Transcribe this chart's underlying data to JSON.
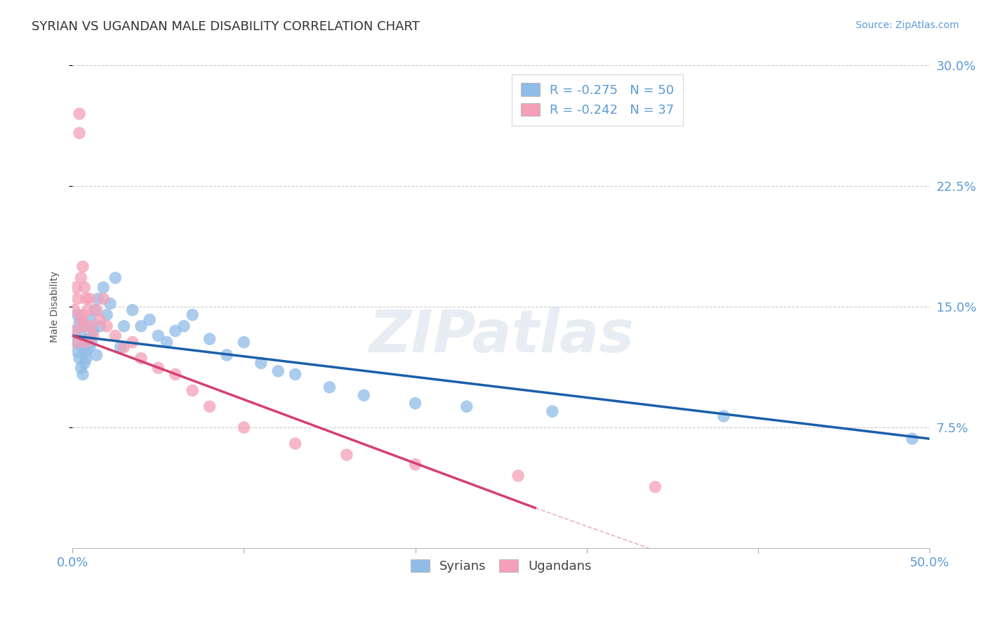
{
  "title": "SYRIAN VS UGANDAN MALE DISABILITY CORRELATION CHART",
  "source": "Source: ZipAtlas.com",
  "ylabel": "Male Disability",
  "xlim": [
    0.0,
    0.5
  ],
  "ylim": [
    0.0,
    0.3
  ],
  "syrian_color": "#90bce8",
  "ugandan_color": "#f4a0b8",
  "syrian_line_color": "#1a5faa",
  "ugandan_line_color": "#d44070",
  "syrian_R": -0.275,
  "syrian_N": 50,
  "ugandan_R": -0.242,
  "ugandan_N": 37,
  "tick_color": "#5b9bd5",
  "label_color": "#555555",
  "grid_color": "#cccccc",
  "syrians_x": [
    0.001,
    0.002,
    0.003,
    0.003,
    0.004,
    0.004,
    0.005,
    0.005,
    0.006,
    0.006,
    0.007,
    0.007,
    0.008,
    0.008,
    0.009,
    0.01,
    0.01,
    0.011,
    0.012,
    0.013,
    0.014,
    0.015,
    0.016,
    0.018,
    0.02,
    0.022,
    0.025,
    0.028,
    0.03,
    0.035,
    0.04,
    0.045,
    0.05,
    0.055,
    0.06,
    0.065,
    0.07,
    0.08,
    0.09,
    0.1,
    0.11,
    0.12,
    0.13,
    0.15,
    0.17,
    0.2,
    0.23,
    0.28,
    0.38,
    0.49
  ],
  "syrians_y": [
    0.135,
    0.128,
    0.122,
    0.145,
    0.118,
    0.14,
    0.112,
    0.132,
    0.108,
    0.125,
    0.115,
    0.138,
    0.122,
    0.118,
    0.13,
    0.125,
    0.142,
    0.128,
    0.135,
    0.148,
    0.12,
    0.155,
    0.138,
    0.162,
    0.145,
    0.152,
    0.168,
    0.125,
    0.138,
    0.148,
    0.138,
    0.142,
    0.132,
    0.128,
    0.135,
    0.138,
    0.145,
    0.13,
    0.12,
    0.128,
    0.115,
    0.11,
    0.108,
    0.1,
    0.095,
    0.09,
    0.088,
    0.085,
    0.082,
    0.068
  ],
  "ugandans_x": [
    0.001,
    0.002,
    0.002,
    0.003,
    0.003,
    0.004,
    0.004,
    0.005,
    0.005,
    0.006,
    0.006,
    0.007,
    0.007,
    0.008,
    0.008,
    0.009,
    0.01,
    0.011,
    0.012,
    0.014,
    0.016,
    0.018,
    0.02,
    0.025,
    0.03,
    0.035,
    0.04,
    0.05,
    0.06,
    0.07,
    0.08,
    0.1,
    0.13,
    0.16,
    0.2,
    0.26,
    0.34
  ],
  "ugandans_y": [
    0.148,
    0.162,
    0.135,
    0.155,
    0.128,
    0.27,
    0.258,
    0.142,
    0.168,
    0.175,
    0.145,
    0.162,
    0.138,
    0.155,
    0.128,
    0.148,
    0.155,
    0.138,
    0.132,
    0.148,
    0.142,
    0.155,
    0.138,
    0.132,
    0.125,
    0.128,
    0.118,
    0.112,
    0.108,
    0.098,
    0.088,
    0.075,
    0.065,
    0.058,
    0.052,
    0.045,
    0.038
  ],
  "ytick_positions": [
    0.075,
    0.15,
    0.225,
    0.3
  ],
  "ytick_labels": [
    "7.5%",
    "15.0%",
    "22.5%",
    "30.0%"
  ],
  "xtick_positions": [
    0.0,
    0.1,
    0.2,
    0.3,
    0.4,
    0.5
  ],
  "xtick_labels": [
    "0.0%",
    "",
    "",
    "",
    "",
    "50.0%"
  ]
}
